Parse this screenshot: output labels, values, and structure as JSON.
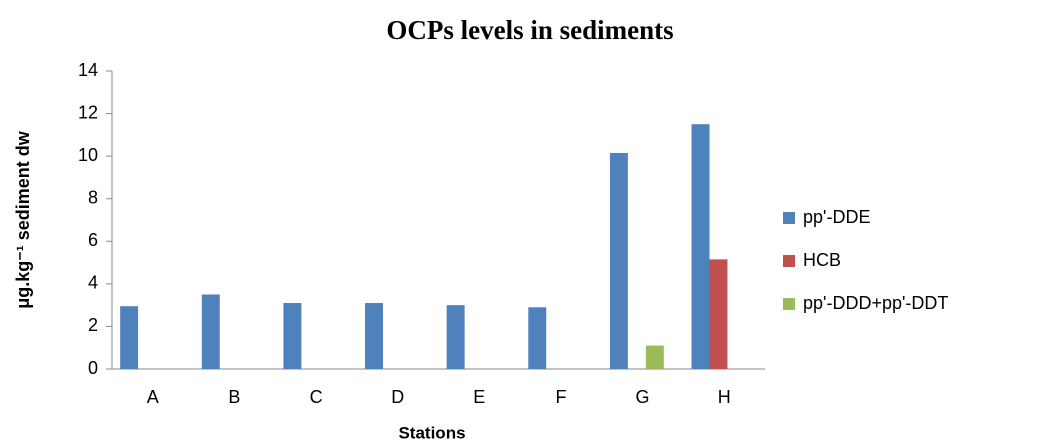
{
  "chart_data": {
    "type": "bar",
    "title": "OCPs levels in sediments",
    "x_label": "Stations",
    "y_label": "μg.kg⁻¹ sediment dw",
    "categories": [
      "A",
      "B",
      "C",
      "D",
      "E",
      "F",
      "G",
      "H"
    ],
    "series": [
      {
        "name": "pp'-DDE",
        "color": "#4f81bd",
        "values": [
          2.95,
          3.5,
          3.1,
          3.1,
          3.0,
          2.9,
          10.15,
          11.5
        ]
      },
      {
        "name": "HCB",
        "color": "#c0504d",
        "values": [
          0,
          0,
          0,
          0,
          0,
          0,
          0,
          5.15
        ]
      },
      {
        "name": "pp'-DDD+pp'-DDT",
        "color": "#9bbb59",
        "values": [
          0,
          0,
          0,
          0,
          0,
          0,
          1.1,
          0
        ]
      }
    ],
    "ylim": [
      0,
      14
    ],
    "yticks": [
      0,
      2,
      4,
      6,
      8,
      10,
      12,
      14
    ],
    "grid": false,
    "legend": "right"
  }
}
